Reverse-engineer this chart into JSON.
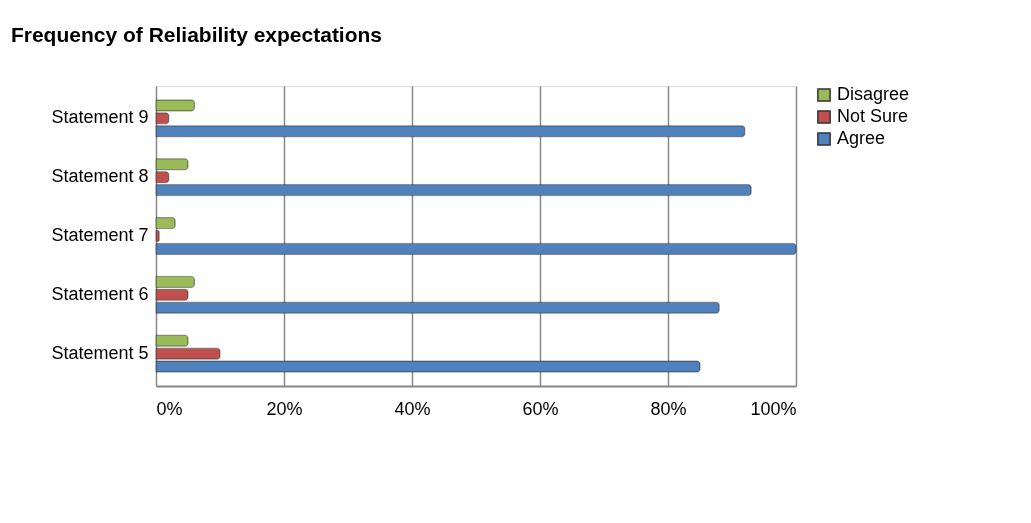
{
  "chart_data": {
    "type": "bar",
    "orientation": "horizontal",
    "title": "Frequency of Reliability expectations",
    "categories": [
      "Statement 9",
      "Statement 8",
      "Statement 7",
      "Statement 6",
      "Statement 5"
    ],
    "series": [
      {
        "name": "Disagree",
        "color": "#9bbb59",
        "values": [
          6,
          5,
          3,
          6,
          5
        ]
      },
      {
        "name": "Not Sure",
        "color": "#c0504d",
        "values": [
          2,
          2,
          0.5,
          5,
          10
        ]
      },
      {
        "name": "Agree",
        "color": "#4f81bd",
        "values": [
          92,
          93,
          100,
          88,
          85
        ]
      }
    ],
    "xlim": [
      0,
      100
    ],
    "xticks": [
      {
        "value": 0,
        "label": "0%"
      },
      {
        "value": 20,
        "label": "20%"
      },
      {
        "value": 40,
        "label": "40%"
      },
      {
        "value": 60,
        "label": "60%"
      },
      {
        "value": 80,
        "label": "80%"
      },
      {
        "value": 100,
        "label": "100%"
      }
    ],
    "grid": "x",
    "legend": "right"
  }
}
